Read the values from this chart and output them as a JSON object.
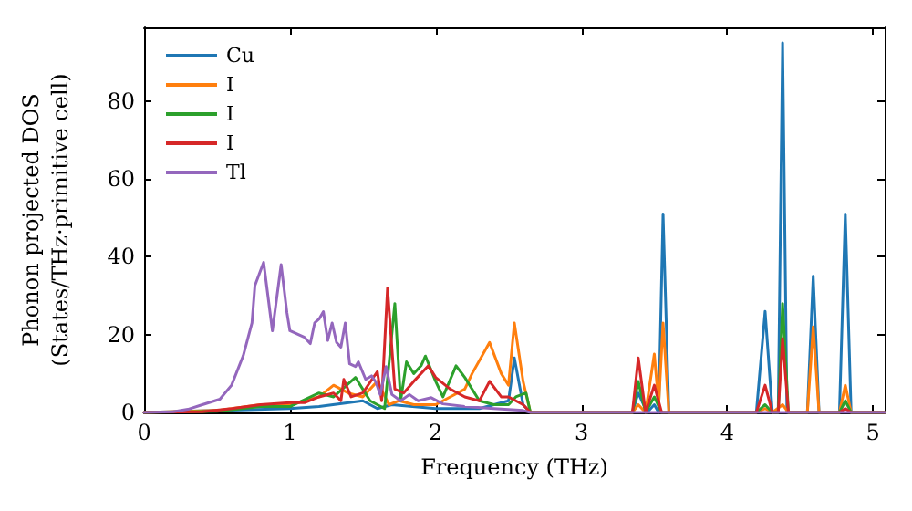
{
  "chart_data": {
    "type": "line",
    "xlabel": "Frequency (THz)",
    "ylabel": "Phonon projected DOS\n(States/THz·primitive cell)",
    "xlim": [
      0,
      5.08
    ],
    "xticks": [
      0,
      1,
      2,
      3,
      4,
      5
    ],
    "ylim": [
      0,
      99
    ],
    "yticks": [
      0,
      20,
      40,
      60,
      80
    ],
    "grid": false,
    "legend": "top left",
    "marker": "none",
    "line_style": "solid",
    "series": [
      {
        "name": "Cu",
        "color": "#1f77b4",
        "x": [
          0,
          0.5,
          1.0,
          1.2,
          1.5,
          1.6,
          1.7,
          2.0,
          2.3,
          2.5,
          2.54,
          2.6,
          2.65,
          3.3,
          3.35,
          3.39,
          3.45,
          3.5,
          3.53,
          3.56,
          3.6,
          4.2,
          4.26,
          4.31,
          4.35,
          4.38,
          4.41,
          4.55,
          4.59,
          4.63,
          4.77,
          4.81,
          4.85,
          5.08
        ],
        "values": [
          0,
          0.5,
          1,
          1.5,
          3,
          1,
          2,
          1,
          1,
          3,
          14,
          2,
          0,
          0,
          0,
          5,
          0,
          2,
          0,
          51,
          0,
          0,
          26,
          0,
          0,
          95,
          0,
          0,
          35,
          0,
          0,
          51,
          0,
          0
        ]
      },
      {
        "name": "I",
        "color": "#ff7f0e",
        "x": [
          0,
          0.5,
          0.8,
          1.0,
          1.2,
          1.3,
          1.4,
          1.5,
          1.6,
          1.68,
          1.75,
          1.85,
          2.0,
          2.1,
          2.2,
          2.25,
          2.37,
          2.45,
          2.5,
          2.54,
          2.6,
          2.65,
          3.3,
          3.35,
          3.39,
          3.44,
          3.5,
          3.53,
          3.56,
          3.6,
          4.2,
          4.26,
          4.31,
          4.38,
          4.42,
          4.55,
          4.59,
          4.63,
          4.77,
          4.81,
          4.85,
          5.08
        ],
        "values": [
          0,
          0.5,
          2,
          2,
          4,
          7,
          5,
          4,
          8,
          2,
          3,
          2,
          2,
          4,
          6,
          10,
          18,
          10,
          7,
          23,
          8,
          0,
          0,
          0,
          2,
          0,
          15,
          2,
          23,
          0,
          0,
          1,
          0,
          2,
          0,
          0,
          22,
          0,
          0,
          7,
          0,
          0
        ]
      },
      {
        "name": "I",
        "color": "#2ca02c",
        "x": [
          0,
          0.5,
          0.8,
          1.0,
          1.2,
          1.3,
          1.45,
          1.55,
          1.65,
          1.72,
          1.76,
          1.8,
          1.85,
          1.9,
          1.93,
          2.0,
          2.05,
          2.14,
          2.2,
          2.3,
          2.4,
          2.5,
          2.55,
          2.62,
          2.65,
          3.3,
          3.35,
          3.39,
          3.44,
          3.5,
          3.55,
          4.2,
          4.26,
          4.31,
          4.35,
          4.38,
          4.42,
          4.77,
          4.81,
          4.85,
          5.08
        ],
        "values": [
          0,
          0.3,
          1.5,
          1.5,
          5,
          4,
          9,
          3,
          1,
          28,
          3,
          13,
          10,
          12,
          14.5,
          8,
          4,
          12,
          9,
          3,
          2,
          2,
          4,
          5,
          0,
          0,
          0,
          8,
          0,
          4,
          0,
          0,
          2,
          0,
          0,
          28,
          0,
          0,
          3,
          0,
          0
        ]
      },
      {
        "name": "I",
        "color": "#d62728",
        "x": [
          0,
          0.4,
          0.6,
          0.8,
          1.0,
          1.1,
          1.2,
          1.3,
          1.35,
          1.37,
          1.42,
          1.5,
          1.6,
          1.63,
          1.67,
          1.72,
          1.78,
          1.85,
          1.95,
          2.0,
          2.1,
          2.2,
          2.3,
          2.37,
          2.45,
          2.5,
          2.6,
          2.65,
          3.3,
          3.35,
          3.39,
          3.44,
          3.5,
          3.55,
          4.2,
          4.26,
          4.31,
          4.35,
          4.38,
          4.42,
          4.77,
          4.81,
          4.85,
          5.08
        ],
        "values": [
          0,
          0.2,
          1,
          2,
          2.5,
          2.5,
          4,
          5,
          3,
          8.5,
          4,
          5,
          10.5,
          3,
          32,
          6,
          5,
          8,
          12,
          9,
          6,
          4,
          3,
          8,
          4,
          4,
          2,
          0,
          0,
          0,
          14,
          0,
          7,
          0,
          0,
          7,
          0,
          0,
          19,
          0,
          0,
          1,
          0,
          0
        ]
      },
      {
        "name": "Tl",
        "color": "#9467bd",
        "x": [
          0,
          0.2,
          0.3,
          0.4,
          0.52,
          0.6,
          0.68,
          0.74,
          0.76,
          0.82,
          0.88,
          0.94,
          0.98,
          1.0,
          1.1,
          1.14,
          1.17,
          1.2,
          1.23,
          1.26,
          1.29,
          1.32,
          1.35,
          1.38,
          1.41,
          1.45,
          1.47,
          1.52,
          1.56,
          1.59,
          1.62,
          1.66,
          1.7,
          1.76,
          1.82,
          1.88,
          1.97,
          2.05,
          2.2,
          2.4,
          2.6,
          2.65,
          5.08
        ],
        "values": [
          0,
          0.2,
          0.8,
          2,
          3.4,
          7,
          14.6,
          23,
          32.6,
          38.6,
          21,
          38,
          25.6,
          21,
          19.3,
          17.7,
          23,
          24,
          25.9,
          18.5,
          23,
          18,
          16.8,
          23,
          12.5,
          11.8,
          13,
          8.5,
          9.4,
          7.8,
          4.6,
          11.8,
          4.6,
          3,
          4.6,
          3,
          3.8,
          2.2,
          1.5,
          1,
          0.5,
          0,
          0
        ]
      }
    ]
  }
}
